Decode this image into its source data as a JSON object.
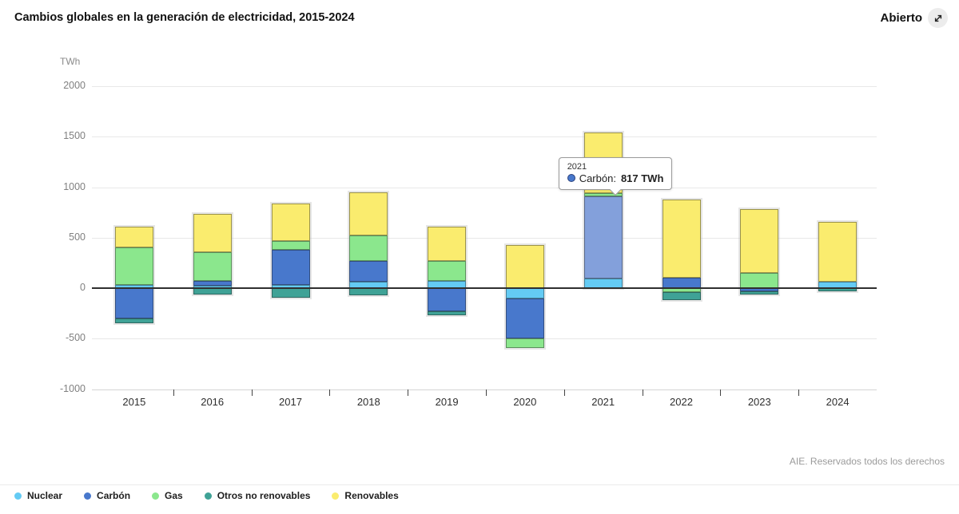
{
  "header": {
    "title": "Cambios globales en la generación de electricidad, 2015-2024",
    "open_label": "Abierto",
    "open_icon": "expand-diagonal-arrow"
  },
  "chart_data": {
    "type": "bar",
    "stacked": true,
    "title": "Cambios globales en la generación de electricidad, 2015-2024",
    "xlabel": "",
    "ylabel": "TWh",
    "unit": "TWh",
    "ylim": [
      -1000,
      2000
    ],
    "yticks": [
      2000,
      1500,
      1000,
      500,
      0,
      -500,
      -1000
    ],
    "grid": true,
    "grid_color": "#e8e8e8",
    "zero_line_color": "#2f2f2f",
    "legend_position": "bottom",
    "categories": [
      "2015",
      "2016",
      "2017",
      "2018",
      "2019",
      "2020",
      "2021",
      "2022",
      "2023",
      "2024"
    ],
    "series": [
      {
        "name": "Nuclear",
        "color": "#64cbf4",
        "values": [
          30,
          20,
          30,
          65,
          75,
          -105,
          95,
          0,
          0,
          65
        ]
      },
      {
        "name": "Carbón",
        "color": "#4878cc",
        "values": [
          -300,
          50,
          350,
          205,
          -230,
          -390,
          817,
          105,
          -35,
          0
        ]
      },
      {
        "name": "Gas",
        "color": "#8be78d",
        "values": [
          370,
          285,
          90,
          255,
          190,
          -95,
          30,
          -40,
          150,
          0
        ]
      },
      {
        "name": "Otros no renovables",
        "color": "#3fa296",
        "values": [
          -45,
          -60,
          -95,
          -70,
          -35,
          0,
          0,
          -75,
          -25,
          -30
        ]
      },
      {
        "name": "Renovables",
        "color": "#faec6e",
        "values": [
          210,
          380,
          365,
          420,
          340,
          425,
          600,
          775,
          630,
          590
        ]
      }
    ]
  },
  "tooltip": {
    "year": "2021",
    "series": "Carbón",
    "series_label": "Carbón:",
    "value": "817 TWh",
    "highlight_color": "#83a0db"
  },
  "footer": {
    "attribution": "AIE. Reservados todos los derechos"
  }
}
